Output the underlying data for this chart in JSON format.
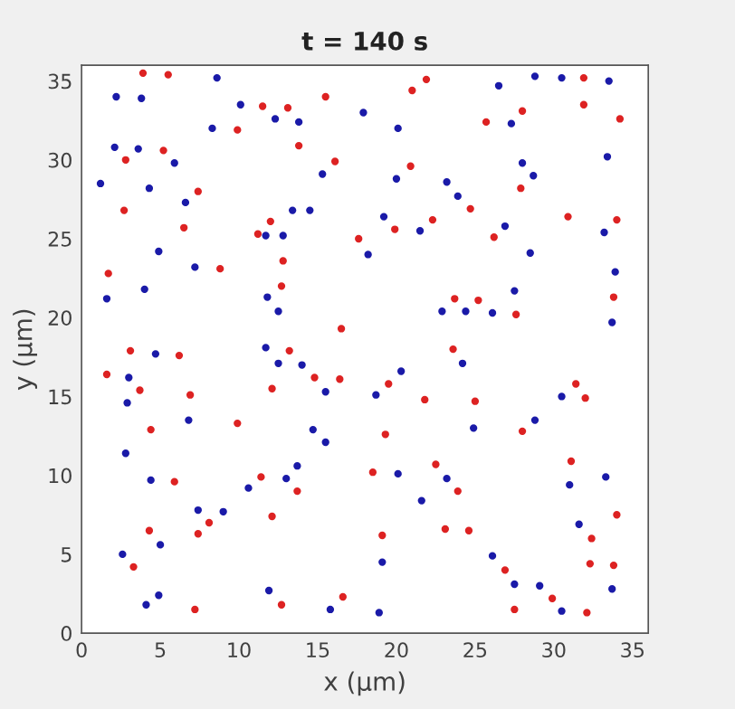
{
  "chart_data": {
    "type": "scatter",
    "title": "t = 140 s",
    "xlabel": "x (μm)",
    "ylabel": "y (μm)",
    "xlim": [
      0,
      36
    ],
    "ylim": [
      0,
      36
    ],
    "xticks": [
      0,
      5,
      10,
      15,
      20,
      25,
      30,
      35
    ],
    "yticks": [
      0,
      5,
      10,
      15,
      20,
      25,
      30,
      35
    ],
    "grid": false,
    "legend": false,
    "marker": "circle",
    "series": [
      {
        "color": "#dd2222",
        "x": [
          3.9,
          5.5,
          15.5,
          11.5,
          13.1,
          9.9,
          5.2,
          2.8,
          13.8,
          16.1,
          7.4,
          6.5,
          2.7,
          11.2,
          12.0,
          12.8,
          8.8,
          1.7,
          12.7,
          16.5,
          3.1,
          6.2,
          1.6,
          3.7,
          13.2,
          12.1,
          6.9,
          4.4,
          14.8,
          16.4,
          9.9,
          11.4,
          13.7,
          8.1,
          7.4,
          12.1,
          12.7,
          3.3,
          4.3,
          5.9,
          16.6,
          7.2,
          19.1,
          18.5,
          19.3,
          19.5,
          17.6,
          19.9,
          20.9,
          21.9,
          21.0,
          22.3,
          24.7,
          23.7,
          25.2,
          23.6,
          21.8,
          25.0,
          22.5,
          23.9,
          23.1,
          24.6,
          26.9,
          27.5,
          28.0,
          27.6,
          27.9,
          26.2,
          25.7,
          28.0,
          30.9,
          31.9,
          31.9,
          34.2,
          34.0,
          33.8,
          31.4,
          32.0,
          31.1,
          32.4,
          34.0,
          32.3,
          33.8,
          29.9,
          32.1
        ],
        "values": [
          35.5,
          35.4,
          34.0,
          33.4,
          33.3,
          31.9,
          30.6,
          30.0,
          30.9,
          29.9,
          28.0,
          25.7,
          26.8,
          25.3,
          26.1,
          23.6,
          23.1,
          22.8,
          22.0,
          19.3,
          17.9,
          17.6,
          16.4,
          15.4,
          17.9,
          15.5,
          15.1,
          12.9,
          16.2,
          16.1,
          13.3,
          9.9,
          9.0,
          7.0,
          6.3,
          7.4,
          1.8,
          4.2,
          6.5,
          9.6,
          2.3,
          1.5,
          6.2,
          10.2,
          12.6,
          15.8,
          25.0,
          25.6,
          29.6,
          35.1,
          34.4,
          26.2,
          26.9,
          21.2,
          21.1,
          18.0,
          14.8,
          14.7,
          10.7,
          9.0,
          6.6,
          6.5,
          4.0,
          1.5,
          12.8,
          20.2,
          28.2,
          25.1,
          32.4,
          33.1,
          26.4,
          35.2,
          33.5,
          32.6,
          26.2,
          21.3,
          15.8,
          14.9,
          10.9,
          6.0,
          7.5,
          4.4,
          4.3,
          2.2,
          1.3
        ]
      },
      {
        "color": "#1a1aa8",
        "x": [
          2.2,
          3.8,
          8.6,
          10.1,
          12.3,
          13.8,
          8.3,
          2.1,
          3.6,
          5.9,
          1.2,
          4.3,
          6.6,
          13.4,
          11.7,
          12.8,
          15.3,
          14.5,
          7.2,
          4.9,
          4.0,
          1.6,
          11.8,
          12.5,
          18.2,
          19.2,
          17.9,
          20.1,
          20.0,
          23.2,
          23.9,
          21.5,
          26.9,
          28.0,
          28.7,
          28.5,
          27.5,
          22.9,
          24.4,
          26.1,
          33.5,
          30.5,
          28.8,
          26.5,
          27.3,
          33.4,
          33.2,
          33.9,
          33.7,
          4.7,
          3.0,
          2.9,
          6.8,
          2.8,
          11.7,
          12.5,
          14.0,
          15.5,
          14.7,
          15.5,
          18.7,
          20.3,
          30.5,
          28.8,
          24.9,
          24.2,
          4.4,
          10.6,
          13.0,
          13.7,
          20.1,
          21.6,
          23.2,
          7.4,
          9.0,
          2.6,
          5.0,
          4.1,
          4.9,
          11.9,
          15.8,
          18.9,
          19.1,
          26.1,
          27.5,
          29.1,
          30.5,
          33.7,
          31.0,
          31.6,
          33.3
        ],
        "values": [
          34.0,
          33.9,
          35.2,
          33.5,
          32.6,
          32.4,
          32.0,
          30.8,
          30.7,
          29.8,
          28.5,
          28.2,
          27.3,
          26.8,
          25.2,
          25.2,
          29.1,
          26.8,
          23.2,
          24.2,
          21.8,
          21.2,
          21.3,
          20.4,
          24.0,
          26.4,
          33.0,
          32.0,
          28.8,
          28.6,
          27.7,
          25.5,
          25.8,
          29.8,
          29.0,
          24.1,
          21.7,
          20.4,
          20.4,
          20.3,
          35.0,
          35.2,
          35.3,
          34.7,
          32.3,
          30.2,
          25.4,
          22.9,
          19.7,
          17.7,
          16.2,
          14.6,
          13.5,
          11.4,
          18.1,
          17.1,
          17.0,
          15.3,
          12.9,
          12.1,
          15.1,
          16.6,
          15.0,
          13.5,
          13.0,
          17.1,
          9.7,
          9.2,
          9.8,
          10.6,
          10.1,
          8.4,
          9.8,
          7.8,
          7.7,
          5.0,
          5.6,
          1.8,
          2.4,
          2.7,
          1.5,
          1.3,
          4.5,
          4.9,
          3.1,
          3.0,
          1.4,
          2.8,
          9.4,
          6.9,
          9.9
        ]
      }
    ]
  }
}
